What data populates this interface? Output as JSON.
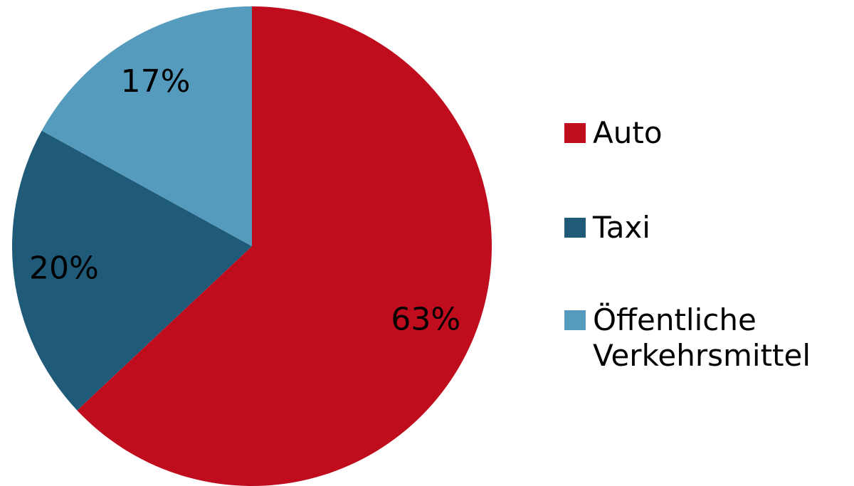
{
  "chart_data": {
    "type": "pie",
    "categories": [
      "Auto",
      "Taxi",
      "Öffentliche Verkehrsmittel"
    ],
    "values": [
      63,
      20,
      17
    ],
    "value_labels": [
      "63%",
      "20%",
      "17%"
    ],
    "colors": [
      "#c00d1e",
      "#1f5a78",
      "#559bbd"
    ],
    "legend": "right"
  }
}
